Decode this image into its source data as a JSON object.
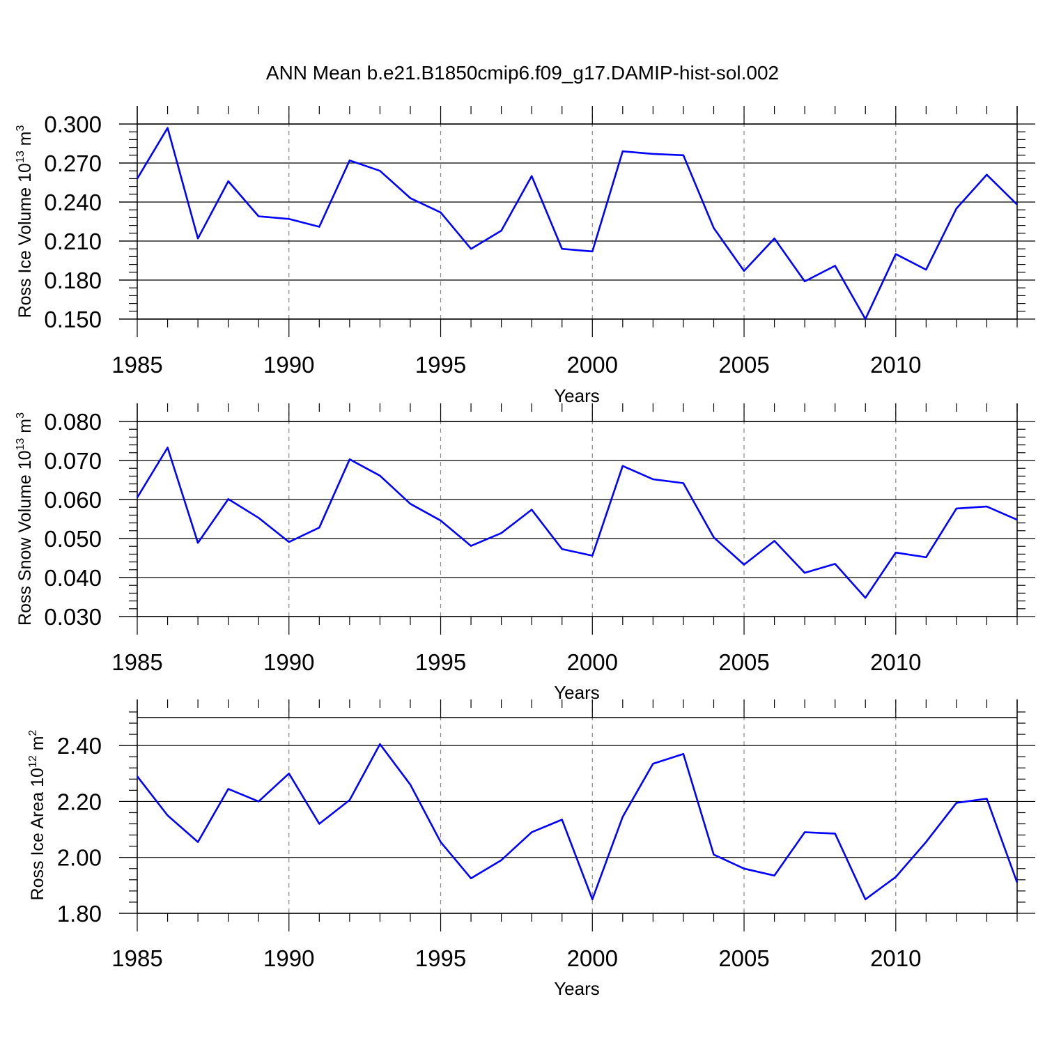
{
  "title": "ANN Mean b.e21.B1850cmip6.f09_g17.DAMIP-hist-sol.002",
  "line_color": "#0000ff",
  "chart_data": [
    {
      "type": "line",
      "title": "ANN Mean b.e21.B1850cmip6.f09_g17.DAMIP-hist-sol.002",
      "xlabel": "Years",
      "ylabel": {
        "text": "Ross Ice Volume 10",
        "sup1": "13",
        "mid": " m",
        "sup2": "3"
      },
      "x": [
        1985,
        1986,
        1987,
        1988,
        1989,
        1990,
        1991,
        1992,
        1993,
        1994,
        1995,
        1996,
        1997,
        1998,
        1999,
        2000,
        2001,
        2002,
        2003,
        2004,
        2005,
        2006,
        2007,
        2008,
        2009,
        2010,
        2011,
        2012,
        2013,
        2014
      ],
      "series": [
        {
          "name": "Ross Ice Volume",
          "values": [
            0.258,
            0.297,
            0.212,
            0.256,
            0.229,
            0.227,
            0.221,
            0.272,
            0.264,
            0.243,
            0.232,
            0.204,
            0.218,
            0.26,
            0.204,
            0.202,
            0.279,
            0.277,
            0.276,
            0.22,
            0.187,
            0.212,
            0.179,
            0.191,
            0.15,
            0.2,
            0.188,
            0.235,
            0.261,
            0.238
          ]
        }
      ],
      "xlim": [
        1985,
        2014
      ],
      "ylim": [
        0.15,
        0.3
      ],
      "yticks": [
        0.15,
        0.18,
        0.21,
        0.24,
        0.27,
        0.3
      ],
      "ytick_labels": [
        "0.150",
        "0.180",
        "0.210",
        "0.240",
        "0.270",
        "0.300"
      ],
      "yminor_step": 0.006,
      "xticks": [
        1985,
        1990,
        1995,
        2000,
        2005,
        2010
      ],
      "xtick_labels": [
        "1985",
        "1990",
        "1995",
        "2000",
        "2005",
        "2010"
      ],
      "grid": "x-dashed"
    },
    {
      "type": "line",
      "xlabel": "Years",
      "ylabel": {
        "text": "Ross Snow Volume 10",
        "sup1": "13",
        "mid": " m",
        "sup2": "3"
      },
      "x": [
        1985,
        1986,
        1987,
        1988,
        1989,
        1990,
        1991,
        1992,
        1993,
        1994,
        1995,
        1996,
        1997,
        1998,
        1999,
        2000,
        2001,
        2002,
        2003,
        2004,
        2005,
        2006,
        2007,
        2008,
        2009,
        2010,
        2011,
        2012,
        2013,
        2014
      ],
      "series": [
        {
          "name": "Ross Snow Volume",
          "values": [
            0.0605,
            0.0733,
            0.0489,
            0.0601,
            0.0553,
            0.0491,
            0.0528,
            0.0703,
            0.0661,
            0.0589,
            0.0546,
            0.0481,
            0.0514,
            0.0574,
            0.0473,
            0.0456,
            0.0686,
            0.0652,
            0.0642,
            0.0503,
            0.0433,
            0.0494,
            0.0412,
            0.0435,
            0.0348,
            0.0464,
            0.0452,
            0.0577,
            0.0582,
            0.0548
          ]
        }
      ],
      "xlim": [
        1985,
        2014
      ],
      "ylim": [
        0.03,
        0.08
      ],
      "yticks": [
        0.03,
        0.04,
        0.05,
        0.06,
        0.07,
        0.08
      ],
      "ytick_labels": [
        "0.030",
        "0.040",
        "0.050",
        "0.060",
        "0.070",
        "0.080"
      ],
      "yminor_step": 0.002,
      "xticks": [
        1985,
        1990,
        1995,
        2000,
        2005,
        2010
      ],
      "xtick_labels": [
        "1985",
        "1990",
        "1995",
        "2000",
        "2005",
        "2010"
      ],
      "grid": "x-dashed"
    },
    {
      "type": "line",
      "xlabel": "Years",
      "ylabel": {
        "text": "Ross Ice Area 10",
        "sup1": "12",
        "mid": " m",
        "sup2": "2"
      },
      "x": [
        1985,
        1986,
        1987,
        1988,
        1989,
        1990,
        1991,
        1992,
        1993,
        1994,
        1995,
        1996,
        1997,
        1998,
        1999,
        2000,
        2001,
        2002,
        2003,
        2004,
        2005,
        2006,
        2007,
        2008,
        2009,
        2010,
        2011,
        2012,
        2013,
        2014
      ],
      "series": [
        {
          "name": "Ross Ice Area",
          "values": [
            2.29,
            2.15,
            2.055,
            2.245,
            2.2,
            2.3,
            2.12,
            2.205,
            2.405,
            2.26,
            2.055,
            1.925,
            1.99,
            2.09,
            2.135,
            1.85,
            2.145,
            2.335,
            2.37,
            2.01,
            1.96,
            1.935,
            2.09,
            2.085,
            1.85,
            1.93,
            2.055,
            2.195,
            2.21,
            1.91
          ]
        }
      ],
      "xlim": [
        1985,
        2014
      ],
      "ylim": [
        1.8,
        2.5
      ],
      "yticks": [
        1.8,
        2.0,
        2.2,
        2.4
      ],
      "ytick_labels": [
        "1.80",
        "2.00",
        "2.20",
        "2.40"
      ],
      "yminor_step": 0.04,
      "xticks": [
        1985,
        1990,
        1995,
        2000,
        2005,
        2010
      ],
      "xtick_labels": [
        "1985",
        "1990",
        "1995",
        "2000",
        "2005",
        "2010"
      ],
      "grid": "x-dashed"
    }
  ]
}
